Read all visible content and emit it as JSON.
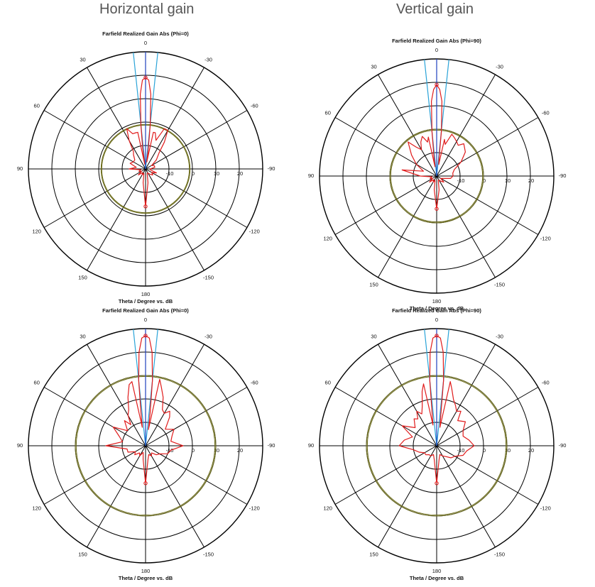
{
  "headings": {
    "left": "Horizontal gain",
    "right": "Vertical gain"
  },
  "colors": {
    "grid": "#000000",
    "gain_trace": "#e01b1b",
    "beam_direction": "#1f3fbf",
    "beam_width": "#2aa3d8",
    "side_lobe_level": "#6b6b1a"
  },
  "chart_data": [
    {
      "type": "polar",
      "title": "Farfield Realized Gain Abs (Phi=0)",
      "xlabel": "Theta / Degree vs. dB",
      "angle_labels": [
        "0",
        "-30",
        "-60",
        "-90",
        "-120",
        "-150",
        "180",
        "150",
        "120",
        "90",
        "60",
        "30"
      ],
      "radial_labels": [
        "-10",
        "0",
        "10",
        "20"
      ],
      "radial_range_db": [
        -20,
        30
      ],
      "reference_circle_db": [
        -1.3,
        -1.0
      ],
      "beam_direction_deg": 0,
      "beam_width_deg": [
        -6,
        6
      ],
      "series": [
        {
          "theta_deg": [
            -180,
            -170,
            -160,
            -150,
            -140,
            -130,
            -120,
            -110,
            -100,
            -90,
            -80,
            -70,
            -60,
            -50,
            -40,
            -35,
            -30,
            -25,
            -20,
            -15,
            -12,
            -10,
            -8,
            -6,
            -4,
            -2,
            0,
            2,
            4,
            6,
            8,
            10,
            12,
            15,
            20,
            25,
            30,
            35,
            40,
            50,
            60,
            70,
            80,
            90,
            100,
            110,
            120,
            130,
            140,
            150,
            160,
            170,
            180
          ],
          "gain_db": [
            -4,
            -14,
            -18,
            -18,
            -17,
            -16,
            -17,
            -15,
            -18,
            -18,
            -16,
            -16,
            -17,
            -14,
            -11,
            -6,
            -1,
            -1,
            -7,
            -4,
            -4,
            -17,
            -12,
            -1,
            12,
            18,
            19,
            18,
            12,
            -1,
            -11,
            -18,
            -4,
            -4,
            -4,
            -1,
            -6,
            -11,
            -12,
            -14,
            -14,
            -13,
            -16,
            -13,
            -18,
            -17,
            -18,
            -16,
            -18,
            -17,
            -18,
            -14,
            -4
          ]
        }
      ]
    },
    {
      "type": "polar",
      "title": "Farfield Realized Gain Abs (Phi=90)",
      "xlabel": "Theta / Degree vs. dB",
      "angle_labels": [
        "0",
        "-30",
        "-60",
        "-90",
        "-120",
        "-150",
        "180",
        "150",
        "120",
        "90",
        "60",
        "30"
      ],
      "radial_labels": [
        "-10",
        "0",
        "10",
        "20"
      ],
      "radial_range_db": [
        -20,
        30
      ],
      "reference_circle_db": [
        -0.4,
        0.0
      ],
      "beam_direction_deg": 0,
      "beam_width_deg": [
        -6,
        6
      ],
      "series": [
        {
          "theta_deg": [
            -180,
            -170,
            -160,
            -150,
            -140,
            -130,
            -120,
            -110,
            -100,
            -90,
            -80,
            -70,
            -60,
            -50,
            -40,
            -35,
            -30,
            -25,
            -20,
            -15,
            -12,
            -10,
            -8,
            -6,
            -4,
            -2,
            0,
            2,
            4,
            6,
            8,
            10,
            12,
            15,
            20,
            25,
            30,
            35,
            40,
            50,
            60,
            70,
            80,
            90,
            100,
            110,
            120,
            130,
            140,
            150,
            160,
            170,
            180
          ],
          "gain_db": [
            -6,
            -14,
            -18,
            -18,
            -17,
            -16,
            -18,
            -17,
            -14,
            -13,
            -13,
            -12,
            -8,
            -4,
            -2,
            -4,
            -3,
            -2,
            -1,
            -6,
            -4,
            -15,
            -13,
            -1,
            12,
            17,
            19,
            17,
            12,
            -1,
            -12,
            -16,
            -3,
            -5,
            -2,
            -4,
            -7,
            -5,
            -1,
            -6,
            -10,
            -14,
            -5,
            -13,
            -18,
            -17,
            -18,
            -16,
            -18,
            -17,
            -18,
            -14,
            -6
          ]
        }
      ]
    },
    {
      "type": "polar",
      "title": "Farfield Realized Gain Abs (Phi=0)",
      "xlabel": "Theta / Degree vs. dB",
      "angle_labels": [
        "0",
        "-30",
        "-60",
        "-90",
        "-120",
        "-150",
        "180",
        "150",
        "120",
        "90",
        "60",
        "30"
      ],
      "radial_labels": [
        "-10",
        "0",
        "10",
        "20"
      ],
      "radial_range_db": [
        -20,
        30
      ],
      "reference_circle_db": [
        9.6,
        10.0
      ],
      "beam_direction_deg": 0,
      "beam_width_deg": [
        -6,
        6
      ],
      "series": [
        {
          "theta_deg": [
            -180,
            -170,
            -160,
            -150,
            -140,
            -130,
            -120,
            -110,
            -100,
            -90,
            -80,
            -70,
            -60,
            -50,
            -40,
            -35,
            -30,
            -25,
            -20,
            -15,
            -12,
            -10,
            -8,
            -6,
            -4,
            -2,
            0,
            2,
            4,
            6,
            8,
            10,
            12,
            15,
            20,
            25,
            30,
            35,
            40,
            50,
            60,
            70,
            80,
            90,
            100,
            110,
            120,
            130,
            140,
            150,
            160,
            170,
            180
          ],
          "gain_db": [
            -4,
            -14,
            -16,
            -15,
            -16,
            -14,
            -13,
            -10,
            -9,
            -4,
            -9,
            -8,
            -6,
            -9,
            -4,
            -2,
            -4,
            -3,
            2,
            6,
            9,
            -13,
            -6,
            8,
            20,
            26,
            27,
            26,
            20,
            8,
            -6,
            -12,
            8,
            7,
            2,
            -3,
            -5,
            -9,
            -6,
            -10,
            -4,
            -8,
            -10,
            -3,
            -12,
            -12,
            -15,
            -14,
            -16,
            -15,
            -17,
            -14,
            -4
          ]
        }
      ]
    },
    {
      "type": "polar",
      "title": "Farfield Realized Gain Abs (Phi=90)",
      "xlabel": "Theta / Degree vs. dB",
      "angle_labels": [
        "0",
        "-30",
        "-60",
        "-90",
        "-120",
        "-150",
        "180",
        "150",
        "120",
        "90",
        "60",
        "30"
      ],
      "radial_labels": [
        "-10",
        "0",
        "10",
        "20"
      ],
      "radial_range_db": [
        -20,
        30
      ],
      "reference_circle_db": [
        9.6,
        10.0
      ],
      "beam_direction_deg": 0,
      "beam_width_deg": [
        -6,
        6
      ],
      "series": [
        {
          "theta_deg": [
            -180,
            -170,
            -160,
            -150,
            -140,
            -130,
            -120,
            -110,
            -100,
            -90,
            -80,
            -70,
            -60,
            -50,
            -40,
            -35,
            -30,
            -25,
            -20,
            -15,
            -12,
            -10,
            -8,
            -6,
            -4,
            -2,
            0,
            2,
            4,
            6,
            8,
            10,
            12,
            15,
            20,
            25,
            30,
            35,
            40,
            50,
            60,
            70,
            80,
            90,
            100,
            110,
            120,
            130,
            140,
            150,
            160,
            170,
            180
          ],
          "gain_db": [
            -4,
            -14,
            -16,
            -15,
            -14,
            -12,
            -11,
            -8,
            -7,
            -4,
            -6,
            -8,
            -7,
            -4,
            -6,
            -2,
            -3,
            -1,
            1,
            5,
            8,
            -12,
            -8,
            8,
            20,
            26,
            27,
            26,
            20,
            8,
            -6,
            -11,
            7,
            4,
            -2,
            -5,
            -3,
            -6,
            -5,
            -8,
            -3,
            -9,
            -6,
            -4,
            -10,
            -12,
            -14,
            -14,
            -15,
            -15,
            -16,
            -14,
            -4
          ]
        }
      ]
    }
  ]
}
